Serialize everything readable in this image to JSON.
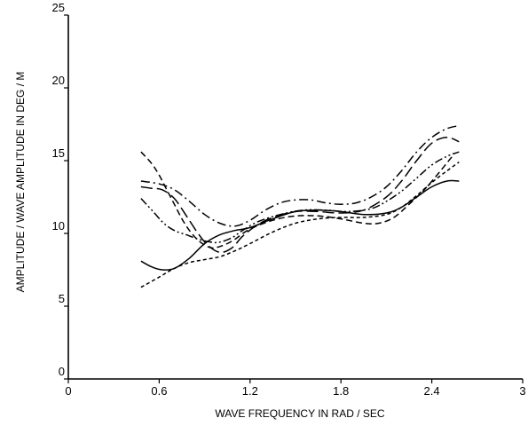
{
  "chart_data": {
    "type": "line",
    "title": "",
    "xlabel": "WAVE FREQUENCY IN RAD / SEC",
    "ylabel": "AMPLITUDE / WAVE AMPLITUDE IN  DEG / M",
    "xlim": [
      0,
      3
    ],
    "ylim": [
      0,
      25
    ],
    "xticks": [
      0,
      0.6,
      1.2,
      1.8,
      2.4,
      3
    ],
    "xtick_labels": [
      "0",
      "0.6",
      "1.2",
      "1.8",
      "2.4",
      "3"
    ],
    "yticks": [
      0,
      5,
      10,
      15,
      20,
      25
    ],
    "ytick_labels": [
      "0",
      "5",
      "10",
      "15",
      "20",
      "25"
    ],
    "grid": false,
    "legend": false,
    "series": [
      {
        "style": "solid",
        "x": [
          0.48,
          0.55,
          0.62,
          0.7,
          0.8,
          0.9,
          1.0,
          1.1,
          1.2,
          1.35,
          1.5,
          1.65,
          1.8,
          1.95,
          2.1,
          2.2,
          2.3,
          2.4,
          2.5,
          2.58
        ],
        "y": [
          8.1,
          7.7,
          7.5,
          7.6,
          8.3,
          9.3,
          9.9,
          10.2,
          10.4,
          11.0,
          11.5,
          11.6,
          11.5,
          11.3,
          11.4,
          11.8,
          12.5,
          13.2,
          13.6,
          13.6
        ]
      },
      {
        "style": "dashed",
        "x": [
          0.48,
          0.55,
          0.6,
          0.65,
          0.7,
          0.75,
          0.8,
          0.85,
          0.9,
          0.95,
          1.0,
          1.05,
          1.1,
          1.2,
          1.35,
          1.5,
          1.65,
          1.8,
          1.95,
          2.05,
          2.15,
          2.25,
          2.35,
          2.45,
          2.55
        ],
        "y": [
          15.6,
          14.8,
          14.0,
          13.0,
          12.0,
          11.0,
          10.2,
          9.6,
          9.2,
          9.0,
          9.1,
          9.3,
          9.6,
          10.3,
          10.9,
          11.2,
          11.2,
          11.0,
          10.7,
          10.7,
          11.1,
          12.0,
          13.0,
          14.2,
          15.5
        ]
      },
      {
        "style": "dash-dot",
        "x": [
          0.48,
          0.6,
          0.7,
          0.8,
          0.9,
          1.0,
          1.1,
          1.2,
          1.3,
          1.4,
          1.5,
          1.6,
          1.7,
          1.8,
          1.9,
          2.0,
          2.1,
          2.2,
          2.3,
          2.4,
          2.5,
          2.58
        ],
        "y": [
          13.6,
          13.4,
          13.0,
          12.2,
          11.3,
          10.7,
          10.5,
          10.9,
          11.6,
          12.1,
          12.3,
          12.3,
          12.1,
          12.0,
          12.1,
          12.5,
          13.2,
          14.3,
          15.6,
          16.6,
          17.2,
          17.4
        ]
      },
      {
        "style": "long-dash",
        "x": [
          0.48,
          0.55,
          0.62,
          0.7,
          0.78,
          0.85,
          0.92,
          1.0,
          1.08,
          1.15,
          1.25,
          1.35,
          1.5,
          1.65,
          1.8,
          1.95,
          2.1,
          2.2,
          2.3,
          2.4,
          2.5,
          2.58
        ],
        "y": [
          13.2,
          13.1,
          13.0,
          12.4,
          11.2,
          10.1,
          9.2,
          8.7,
          9.0,
          9.8,
          10.6,
          11.1,
          11.5,
          11.5,
          11.4,
          11.6,
          12.5,
          13.6,
          15.0,
          16.2,
          16.6,
          16.3
        ]
      },
      {
        "style": "short-dash",
        "x": [
          0.48,
          0.6,
          0.7,
          0.8,
          0.9,
          1.0,
          1.1,
          1.2,
          1.35,
          1.5,
          1.65,
          1.8,
          1.95,
          2.1,
          2.2,
          2.3,
          2.4,
          2.5,
          2.58
        ],
        "y": [
          6.3,
          7.0,
          7.6,
          8.0,
          8.2,
          8.4,
          8.8,
          9.3,
          10.1,
          10.7,
          11.0,
          11.1,
          11.1,
          11.3,
          11.8,
          12.6,
          13.5,
          14.3,
          14.9
        ]
      },
      {
        "style": "dash-dot-dot",
        "x": [
          0.48,
          0.56,
          0.63,
          0.7,
          0.78,
          0.86,
          0.94,
          1.0,
          1.08,
          1.15,
          1.25,
          1.4,
          1.55,
          1.7,
          1.85,
          2.0,
          2.1,
          2.2,
          2.3,
          2.4,
          2.5,
          2.58
        ],
        "y": [
          12.4,
          11.5,
          10.7,
          10.2,
          9.9,
          9.6,
          9.4,
          9.4,
          9.7,
          10.2,
          10.8,
          11.3,
          11.6,
          11.6,
          11.5,
          11.7,
          12.2,
          12.9,
          13.8,
          14.7,
          15.3,
          15.6
        ]
      }
    ]
  }
}
